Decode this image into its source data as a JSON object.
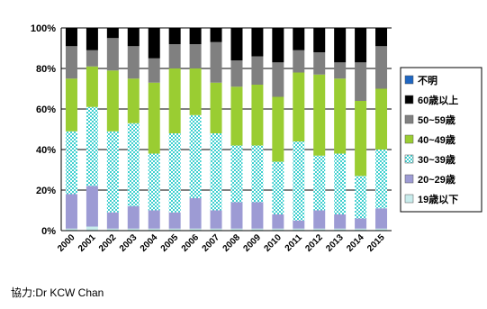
{
  "chart_data": {
    "type": "bar",
    "stacked": true,
    "percent": true,
    "title": "",
    "xlabel": "",
    "ylabel": "",
    "ylim": [
      0,
      100
    ],
    "yticks": [
      "0%",
      "20%",
      "40%",
      "60%",
      "80%",
      "100%"
    ],
    "grid": true,
    "legend_position": "right",
    "categories": [
      "2000",
      "2001",
      "2002",
      "2003",
      "2004",
      "2005",
      "2006",
      "2007",
      "2008",
      "2009",
      "2010",
      "2011",
      "2012",
      "2013",
      "2014",
      "2015"
    ],
    "series": [
      {
        "name": "19歳以下",
        "color": "#c8ecec",
        "pattern": "solid",
        "values": [
          1,
          2,
          1,
          1,
          1,
          1,
          1,
          1,
          1,
          1,
          1,
          1,
          1,
          1,
          1,
          1
        ]
      },
      {
        "name": "20~29歳",
        "color": "#9d9bd4",
        "pattern": "solid",
        "values": [
          17,
          20,
          8,
          11,
          9,
          8,
          15,
          9,
          13,
          13,
          7,
          4,
          9,
          7,
          5,
          10
        ]
      },
      {
        "name": "30~39歳",
        "color": "#40d0d0",
        "pattern": "check",
        "values": [
          31,
          39,
          40,
          41,
          28,
          39,
          41,
          38,
          28,
          28,
          26,
          39,
          27,
          30,
          21,
          29
        ]
      },
      {
        "name": "40~49歳",
        "color": "#9acd32",
        "pattern": "solid",
        "values": [
          26,
          20,
          30,
          22,
          35,
          32,
          23,
          25,
          29,
          30,
          32,
          34,
          40,
          37,
          37,
          30
        ]
      },
      {
        "name": "50~59歳",
        "color": "#808080",
        "pattern": "solid",
        "values": [
          16,
          8,
          16,
          16,
          12,
          12,
          12,
          20,
          13,
          14,
          17,
          11,
          11,
          8,
          19,
          21
        ]
      },
      {
        "name": "60歳以上",
        "color": "#000000",
        "pattern": "solid",
        "values": [
          9,
          11,
          5,
          9,
          15,
          8,
          8,
          7,
          16,
          14,
          17,
          11,
          12,
          17,
          17,
          9
        ]
      },
      {
        "name": "不明",
        "color": "#1f66c1",
        "pattern": "solid",
        "values": [
          0,
          0,
          0,
          0,
          0,
          0,
          0,
          0,
          0,
          0,
          0,
          0,
          0,
          0,
          0,
          0
        ]
      }
    ]
  },
  "credit": "協力:Dr KCW Chan"
}
